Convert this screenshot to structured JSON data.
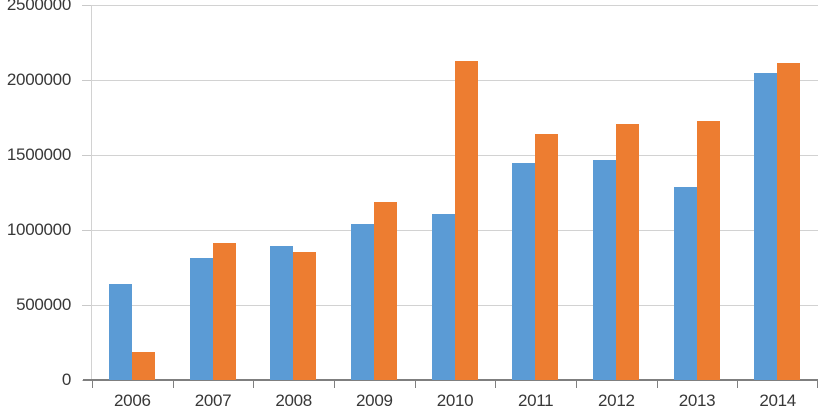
{
  "chart_data": {
    "type": "bar",
    "title": "",
    "xlabel": "",
    "ylabel": "",
    "categories": [
      "2006",
      "2007",
      "2008",
      "2009",
      "2010",
      "2011",
      "2012",
      "2013",
      "2014"
    ],
    "series": [
      {
        "name": "blue-series",
        "color": "#5B9BD5",
        "values": [
          640000,
          815000,
          895000,
          1040000,
          1110000,
          1450000,
          1470000,
          1290000,
          2050000
        ]
      },
      {
        "name": "orange-series",
        "color": "#ED7D31",
        "values": [
          190000,
          915000,
          855000,
          1190000,
          2130000,
          1640000,
          1710000,
          1725000,
          2115000
        ]
      }
    ],
    "ylim": [
      0,
      2500000
    ],
    "ytick_interval": 500000,
    "ytick_labels": [
      "0",
      "500000",
      "1000000",
      "1500000",
      "2000000",
      "2500000"
    ],
    "grid": true,
    "legend_position": "none"
  },
  "colors": {
    "background": "#FFFFFF",
    "gridline": "#D2D2D2",
    "x_axis": "#7F7F7F",
    "y_axis": "#D2D2D2",
    "y_tick": "#C9C9C9",
    "label_text": "#383838"
  }
}
